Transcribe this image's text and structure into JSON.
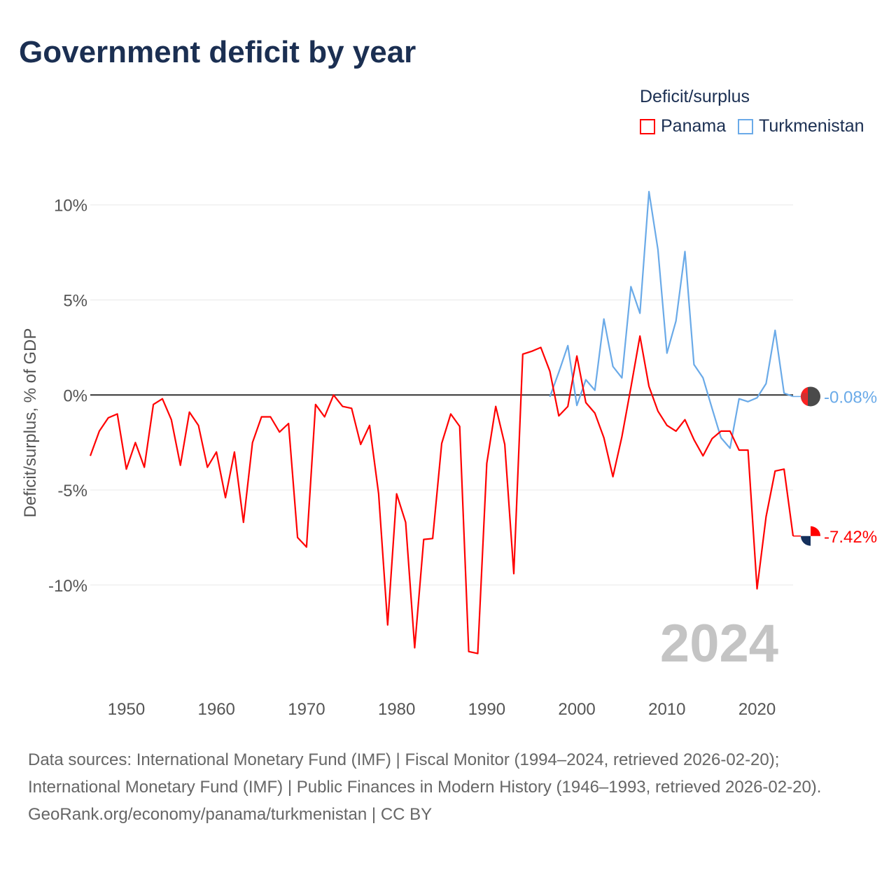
{
  "title": "Government deficit by year",
  "chart_data": {
    "type": "line",
    "title": "Government deficit by year",
    "ylabel": "Deficit/surplus, % of GDP",
    "xlabel": "",
    "legend_title": "Deficit/surplus",
    "legend_position": "top-right",
    "ylim": [
      -14.5,
      11.5
    ],
    "xlim": [
      1946,
      2024
    ],
    "y_ticks": [
      {
        "v": 10,
        "label": "10%"
      },
      {
        "v": 5,
        "label": "5%"
      },
      {
        "v": 0,
        "label": "0%"
      },
      {
        "v": -5,
        "label": "-5%"
      },
      {
        "v": -10,
        "label": "-10%"
      }
    ],
    "x_ticks": [
      {
        "v": 1950,
        "label": "1950"
      },
      {
        "v": 1960,
        "label": "1960"
      },
      {
        "v": 1970,
        "label": "1970"
      },
      {
        "v": 1980,
        "label": "1980"
      },
      {
        "v": 1990,
        "label": "1990"
      },
      {
        "v": 2000,
        "label": "2000"
      },
      {
        "v": 2010,
        "label": "2010"
      },
      {
        "v": 2020,
        "label": "2020"
      }
    ],
    "year_watermark": "2024",
    "series": [
      {
        "name": "Panama",
        "color": "#ff0000",
        "start": 1946,
        "end_label": "-7.42%",
        "values": [
          -3.2,
          -1.9,
          -1.2,
          -1.0,
          -3.9,
          -2.5,
          -3.8,
          -0.5,
          -0.2,
          -1.3,
          -3.7,
          -0.9,
          -1.6,
          -3.8,
          -3.0,
          -5.4,
          -3.0,
          -6.7,
          -2.5,
          -1.15,
          -1.15,
          -1.95,
          -1.5,
          -7.5,
          -8.0,
          -0.5,
          -1.15,
          0.0,
          -0.6,
          -0.7,
          -2.6,
          -1.6,
          -5.2,
          -12.1,
          -5.2,
          -6.7,
          -13.3,
          -7.6,
          -7.55,
          -2.55,
          -1.0,
          -1.65,
          -13.5,
          -13.6,
          -3.6,
          -0.6,
          -2.6,
          -9.4,
          2.15,
          2.3,
          2.5,
          1.25,
          -1.1,
          -0.6,
          2.05,
          -0.4,
          -0.95,
          -2.25,
          -4.3,
          -2.2,
          0.4,
          3.1,
          0.45,
          -0.85,
          -1.6,
          -1.9,
          -1.3,
          -2.35,
          -3.2,
          -2.3,
          -1.9,
          -1.9,
          -2.9,
          -2.9,
          -10.2,
          -6.4,
          -4.0,
          -3.9,
          -7.42
        ]
      },
      {
        "name": "Turkmenistan",
        "color": "#6aaae8",
        "start": 1997,
        "end_label": "-0.08%",
        "values": [
          -0.1,
          1.2,
          2.6,
          -0.55,
          0.8,
          0.25,
          4.0,
          1.5,
          0.9,
          5.7,
          4.3,
          10.7,
          7.65,
          2.2,
          3.9,
          7.55,
          1.6,
          0.9,
          -0.7,
          -2.25,
          -2.8,
          -0.2,
          -0.35,
          -0.15,
          0.6,
          3.4,
          0.1,
          -0.08
        ]
      }
    ]
  },
  "sources": {
    "line1": "Data sources: International Monetary Fund (IMF) | Fiscal Monitor (1994–2024, retrieved 2026-02-20);",
    "line2": "International Monetary Fund (IMF) | Public Finances in Modern History (1946–1993, retrieved 2026-02-20).",
    "line3": "GeoRank.org/economy/panama/turkmenistan | CC BY"
  }
}
